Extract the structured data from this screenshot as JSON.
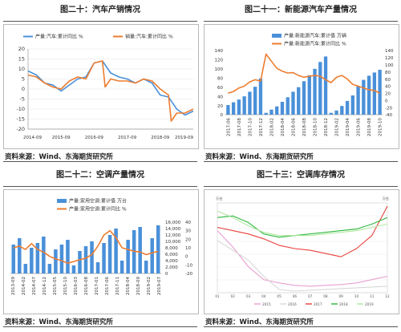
{
  "chart_data": [
    {
      "id": "auto",
      "type": "line",
      "title": "图二十：汽车产销情况",
      "source": "资料来源：Wind、东海期货研究所",
      "legend_position": "top",
      "grid": true,
      "xlim": [
        "2014-09",
        "2019-09"
      ],
      "ylim": [
        -20,
        20
      ],
      "y_ticks": [
        -20,
        -15,
        -10,
        -5,
        0,
        5,
        10,
        15,
        20
      ],
      "x_ticks": [
        "2014-09",
        "2015-09",
        "2016-09",
        "2017-09",
        "2018-09",
        "2019-09"
      ],
      "series": [
        {
          "name": "产量:汽车:累计同比 %",
          "color": "#4a90d9",
          "points": [
            [
              "2014-09",
              9
            ],
            [
              "2014-12",
              7
            ],
            [
              "2015-03",
              3
            ],
            [
              "2015-06",
              2
            ],
            [
              "2015-09",
              -1
            ],
            [
              "2015-12",
              2
            ],
            [
              "2016-03",
              5
            ],
            [
              "2016-06",
              6
            ],
            [
              "2016-09",
              13
            ],
            [
              "2016-12",
              14
            ],
            [
              "2017-03",
              8
            ],
            [
              "2017-06",
              6
            ],
            [
              "2017-09",
              5
            ],
            [
              "2017-12",
              3
            ],
            [
              "2018-03",
              5
            ],
            [
              "2018-06",
              3
            ],
            [
              "2018-09",
              -3
            ],
            [
              "2018-12",
              -4
            ],
            [
              "2019-03",
              -10
            ],
            [
              "2019-06",
              -13
            ],
            [
              "2019-09",
              -11
            ]
          ]
        },
        {
          "name": "销量:汽车:累计同比 %",
          "color": "#ed7d31",
          "points": [
            [
              "2014-09",
              7
            ],
            [
              "2014-12",
              6
            ],
            [
              "2015-03",
              3
            ],
            [
              "2015-06",
              1
            ],
            [
              "2015-09",
              0
            ],
            [
              "2015-12",
              4
            ],
            [
              "2016-03",
              6
            ],
            [
              "2016-06",
              5
            ],
            [
              "2016-09",
              13
            ],
            [
              "2016-12",
              14
            ],
            [
              "2017-01",
              1
            ],
            [
              "2017-03",
              5
            ],
            [
              "2017-06",
              4
            ],
            [
              "2017-09",
              4
            ],
            [
              "2017-12",
              3
            ],
            [
              "2018-03",
              5
            ],
            [
              "2018-06",
              4
            ],
            [
              "2018-09",
              0
            ],
            [
              "2018-12",
              -3
            ],
            [
              "2019-01",
              -16
            ],
            [
              "2019-03",
              -12
            ],
            [
              "2019-06",
              -12
            ],
            [
              "2019-09",
              -10
            ]
          ]
        }
      ]
    },
    {
      "id": "nev",
      "type": "bar",
      "title": "图二十一：新能源汽车产量情况",
      "source": "资料来源：Wind、东海期货研究所",
      "legend_position": "top",
      "grid": false,
      "categories": [
        "2017-06",
        "2017-07",
        "2017-08",
        "2017-09",
        "2017-10",
        "2017-11",
        "2017-12",
        "2018-01",
        "2018-02",
        "2018-03",
        "2018-04",
        "2018-05",
        "2018-06",
        "2018-07",
        "2018-08",
        "2018-09",
        "2018-10",
        "2018-11",
        "2018-12",
        "2019-01",
        "2019-02",
        "2019-03",
        "2019-04",
        "2019-05",
        "2019-06",
        "2019-07",
        "2019-08",
        "2019-09",
        "2019-10"
      ],
      "x_tick_labels": [
        "2017-06",
        "2017-08",
        "2017-10",
        "2017-12",
        "2018-02",
        "2018-04",
        "2018-06",
        "2018-08",
        "2018-10",
        "2018-12",
        "2019-02",
        "2019-04",
        "2019-06",
        "2019-08",
        "2019-10"
      ],
      "ylim_left": [
        0,
        140
      ],
      "ylim_right": [
        -40,
        140
      ],
      "y_ticks_left": [
        0,
        20,
        40,
        60,
        80,
        100,
        120,
        140
      ],
      "y_ticks_right": [
        -40,
        -20,
        0,
        20,
        40,
        60,
        80,
        100,
        120,
        140
      ],
      "series": [
        {
          "name": "产量:新能源汽车:累计值 万辆",
          "color": "#4a90d9",
          "axis": "left",
          "values": [
            21,
            27,
            33,
            40,
            50,
            61,
            79,
            4,
            11,
            18,
            28,
            38,
            50,
            60,
            73,
            86,
            100,
            115,
            127,
            4,
            9,
            19,
            30,
            42,
            62,
            76,
            85,
            92,
            98
          ]
        },
        {
          "name": "产量:新能源汽车:累计同比 %",
          "color": "#ed7d31",
          "axis": "right",
          "values": [
            20,
            25,
            35,
            40,
            52,
            58,
            54,
            130,
            110,
            90,
            82,
            77,
            78,
            70,
            65,
            68,
            70,
            68,
            58,
            50,
            65,
            70,
            60,
            45,
            40,
            35,
            30,
            28,
            20
          ]
        }
      ]
    },
    {
      "id": "ac",
      "type": "bar",
      "title": "图二十二：空调产量情况",
      "source": "资料来源：Wind、东海期货研究所",
      "legend_position": "top",
      "grid": false,
      "categories": [
        "2013-09",
        "2013-12",
        "2014-03",
        "2014-06",
        "2014-09",
        "2014-12",
        "2015-03",
        "2015-06",
        "2015-09",
        "2015-12",
        "2016-03",
        "2016-06",
        "2016-09",
        "2016-12",
        "2017-03",
        "2017-06",
        "2017-09",
        "2017-12",
        "2018-03",
        "2018-06",
        "2018-09",
        "2018-12",
        "2019-03",
        "2019-06",
        "2019-09"
      ],
      "x_tick_labels": [
        "2013-09",
        "2014-02",
        "2014-07",
        "2014-12",
        "2015-05",
        "2015-10",
        "2016-03",
        "2016-08",
        "2017-01",
        "2017-06",
        "2017-11",
        "2018-04",
        "2018-09",
        "2019-02",
        "2019-07"
      ],
      "ylim_left": [
        0,
        16000
      ],
      "ylim_right": [
        -20,
        40
      ],
      "y_ticks_left": [
        0,
        2000,
        4000,
        6000,
        8000,
        10000,
        12000,
        14000,
        16000
      ],
      "y_ticks_right": [
        -20,
        -10,
        0,
        10,
        20,
        30,
        40
      ],
      "series": [
        {
          "name": "产量:家用空调:累计值 万台",
          "color": "#4a90d9",
          "axis": "left",
          "values": [
            9000,
            11000,
            3000,
            8000,
            9500,
            11500,
            3000,
            7500,
            9000,
            10500,
            2500,
            7000,
            8500,
            10000,
            3500,
            9500,
            12000,
            14000,
            4000,
            10500,
            13500,
            14500,
            4000,
            11000,
            15000
          ]
        },
        {
          "name": "产量:家用空调:累计同比 %",
          "color": "#ed7d31",
          "axis": "right",
          "values": [
            10,
            12,
            8,
            15,
            8,
            5,
            0,
            -3,
            -5,
            -8,
            -6,
            -4,
            -2,
            2,
            12,
            25,
            30,
            22,
            10,
            8,
            6,
            5,
            2,
            4,
            6
          ]
        }
      ]
    },
    {
      "id": "inventory",
      "type": "line",
      "title": "图二十三：空调库存情况",
      "source": "资料来源：Wind、东海期货研究所",
      "legend_position": "bottom",
      "grid": true,
      "unit_left": "万台",
      "unit_right": "万台",
      "categories": [
        "01",
        "02",
        "03",
        "04",
        "05",
        "06",
        "07",
        "08",
        "09",
        "10",
        "11",
        "12"
      ],
      "ylim_left": [
        500,
        1050
      ],
      "ylim_right": [
        500,
        1050
      ],
      "series": [
        {
          "name": "2015",
          "color": "#e8a0d0",
          "values": [
            880,
            780,
            660,
            580,
            560,
            545,
            540,
            545,
            550,
            560,
            580,
            600
          ]
        },
        {
          "name": "2016",
          "color": "#d8d8d8",
          "values": [
            820,
            760,
            700,
            600,
            520,
            510,
            515,
            520,
            525,
            530,
            535,
            540
          ]
        },
        {
          "name": "2017",
          "color": "#e8403a",
          "values": [
            900,
            880,
            860,
            830,
            790,
            770,
            760,
            740,
            720,
            770,
            850,
            1030
          ]
        },
        {
          "name": "2018",
          "color": "#2db83d",
          "values": [
            960,
            970,
            930,
            860,
            840,
            850,
            860,
            870,
            880,
            890,
            920,
            960
          ]
        },
        {
          "name": "2019",
          "color": "#b0e8a0",
          "values": [
            1000,
            960,
            910,
            870,
            850,
            850,
            850,
            860,
            870,
            880,
            900,
            920
          ]
        }
      ]
    }
  ]
}
